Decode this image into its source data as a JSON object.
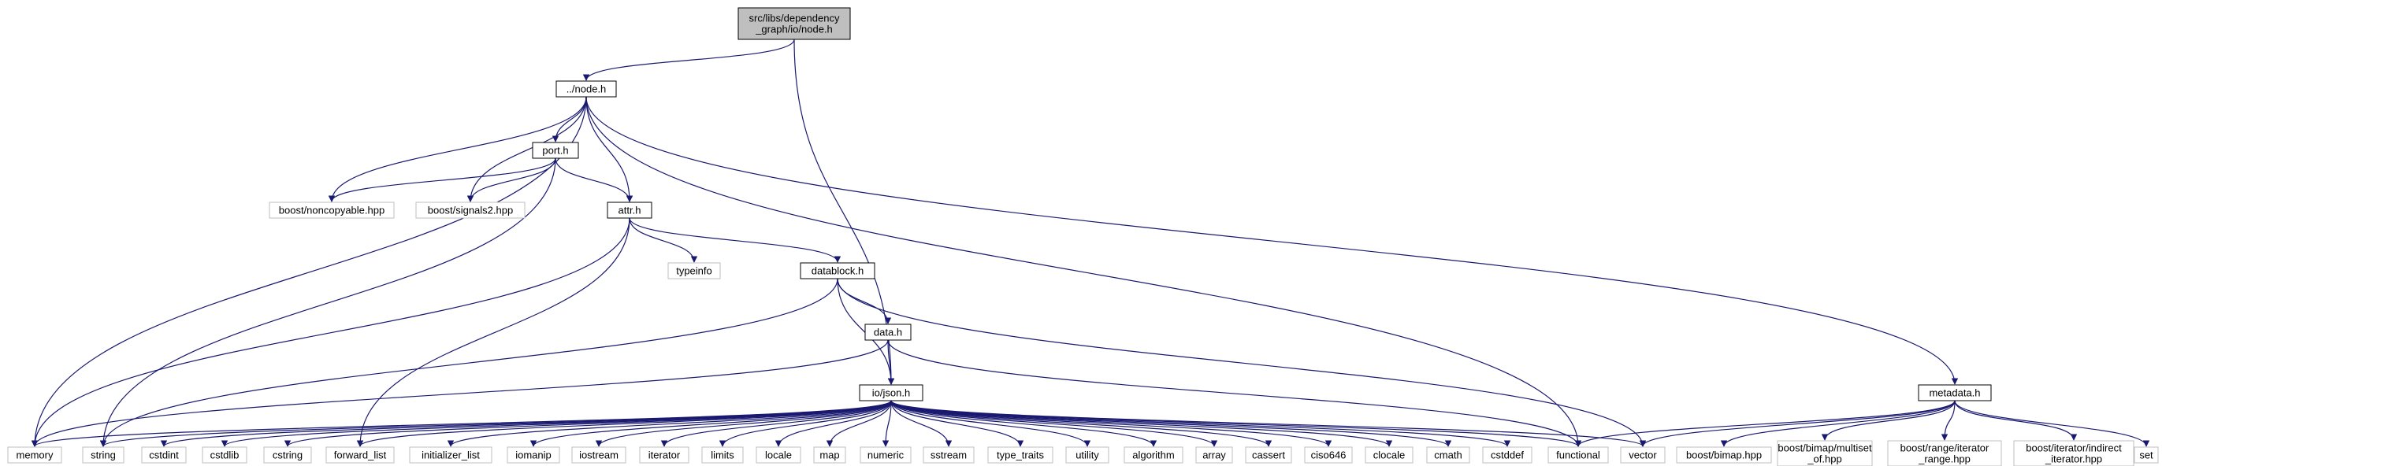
{
  "colors": {
    "edge": "#191970",
    "root_fill": "#bfbfbf",
    "documented_border": "#000000",
    "external_border": "#bfbfbf",
    "node_fill": "#ffffff",
    "background": "#ffffff"
  },
  "nodes": [
    {
      "id": "root",
      "lines": [
        "src/libs/dependency",
        "_graph/io/node.h"
      ],
      "kind": "root"
    },
    {
      "id": "node_h",
      "lines": [
        "../node.h"
      ],
      "kind": "documented"
    },
    {
      "id": "port_h",
      "lines": [
        "port.h"
      ],
      "kind": "documented"
    },
    {
      "id": "attr_h",
      "lines": [
        "attr.h"
      ],
      "kind": "documented"
    },
    {
      "id": "datablock_h",
      "lines": [
        "datablock.h"
      ],
      "kind": "documented"
    },
    {
      "id": "data_h",
      "lines": [
        "data.h"
      ],
      "kind": "documented"
    },
    {
      "id": "json_h",
      "lines": [
        "io/json.h"
      ],
      "kind": "documented"
    },
    {
      "id": "metadata_h",
      "lines": [
        "metadata.h"
      ],
      "kind": "documented"
    },
    {
      "id": "noncopyable",
      "lines": [
        "boost/noncopyable.hpp"
      ],
      "kind": "external"
    },
    {
      "id": "signals2",
      "lines": [
        "boost/signals2.hpp"
      ],
      "kind": "external"
    },
    {
      "id": "typeinfo",
      "lines": [
        "typeinfo"
      ],
      "kind": "external"
    },
    {
      "id": "memory",
      "lines": [
        "memory"
      ],
      "kind": "external"
    },
    {
      "id": "string",
      "lines": [
        "string"
      ],
      "kind": "external"
    },
    {
      "id": "cstdint",
      "lines": [
        "cstdint"
      ],
      "kind": "external"
    },
    {
      "id": "cstdlib",
      "lines": [
        "cstdlib"
      ],
      "kind": "external"
    },
    {
      "id": "cstring",
      "lines": [
        "cstring"
      ],
      "kind": "external"
    },
    {
      "id": "forward_list",
      "lines": [
        "forward_list"
      ],
      "kind": "external"
    },
    {
      "id": "initializer_list",
      "lines": [
        "initializer_list"
      ],
      "kind": "external"
    },
    {
      "id": "iomanip",
      "lines": [
        "iomanip"
      ],
      "kind": "external"
    },
    {
      "id": "iostream",
      "lines": [
        "iostream"
      ],
      "kind": "external"
    },
    {
      "id": "iterator",
      "lines": [
        "iterator"
      ],
      "kind": "external"
    },
    {
      "id": "limits",
      "lines": [
        "limits"
      ],
      "kind": "external"
    },
    {
      "id": "locale",
      "lines": [
        "locale"
      ],
      "kind": "external"
    },
    {
      "id": "map",
      "lines": [
        "map"
      ],
      "kind": "external"
    },
    {
      "id": "numeric",
      "lines": [
        "numeric"
      ],
      "kind": "external"
    },
    {
      "id": "sstream",
      "lines": [
        "sstream"
      ],
      "kind": "external"
    },
    {
      "id": "type_traits",
      "lines": [
        "type_traits"
      ],
      "kind": "external"
    },
    {
      "id": "utility",
      "lines": [
        "utility"
      ],
      "kind": "external"
    },
    {
      "id": "algorithm",
      "lines": [
        "algorithm"
      ],
      "kind": "external"
    },
    {
      "id": "array",
      "lines": [
        "array"
      ],
      "kind": "external"
    },
    {
      "id": "cassert",
      "lines": [
        "cassert"
      ],
      "kind": "external"
    },
    {
      "id": "ciso646",
      "lines": [
        "ciso646"
      ],
      "kind": "external"
    },
    {
      "id": "clocale",
      "lines": [
        "clocale"
      ],
      "kind": "external"
    },
    {
      "id": "cmath",
      "lines": [
        "cmath"
      ],
      "kind": "external"
    },
    {
      "id": "cstddef",
      "lines": [
        "cstddef"
      ],
      "kind": "external"
    },
    {
      "id": "functional",
      "lines": [
        "functional"
      ],
      "kind": "external"
    },
    {
      "id": "vector",
      "lines": [
        "vector"
      ],
      "kind": "external"
    },
    {
      "id": "bimap",
      "lines": [
        "boost/bimap.hpp"
      ],
      "kind": "external"
    },
    {
      "id": "multiset_of",
      "lines": [
        "boost/bimap/multiset",
        "_of.hpp"
      ],
      "kind": "external"
    },
    {
      "id": "iterator_range",
      "lines": [
        "boost/range/iterator",
        "_range.hpp"
      ],
      "kind": "external"
    },
    {
      "id": "indirect_iterator",
      "lines": [
        "boost/iterator/indirect",
        "_iterator.hpp"
      ],
      "kind": "external"
    },
    {
      "id": "set",
      "lines": [
        "set"
      ],
      "kind": "external"
    }
  ],
  "edges": [
    [
      "root",
      "node_h"
    ],
    [
      "root",
      "json_h"
    ],
    [
      "node_h",
      "memory"
    ],
    [
      "node_h",
      "noncopyable"
    ],
    [
      "node_h",
      "signals2"
    ],
    [
      "node_h",
      "port_h"
    ],
    [
      "node_h",
      "attr_h"
    ],
    [
      "node_h",
      "functional"
    ],
    [
      "node_h",
      "metadata_h"
    ],
    [
      "port_h",
      "noncopyable"
    ],
    [
      "port_h",
      "signals2"
    ],
    [
      "port_h",
      "attr_h"
    ],
    [
      "port_h",
      "string"
    ],
    [
      "attr_h",
      "memory"
    ],
    [
      "attr_h",
      "typeinfo"
    ],
    [
      "attr_h",
      "datablock_h"
    ],
    [
      "attr_h",
      "forward_list"
    ],
    [
      "datablock_h",
      "data_h"
    ],
    [
      "datablock_h",
      "json_h"
    ],
    [
      "datablock_h",
      "string"
    ],
    [
      "datablock_h",
      "vector"
    ],
    [
      "data_h",
      "json_h"
    ],
    [
      "data_h",
      "memory"
    ],
    [
      "data_h",
      "functional"
    ],
    [
      "json_h",
      "memory"
    ],
    [
      "json_h",
      "string"
    ],
    [
      "json_h",
      "cstdint"
    ],
    [
      "json_h",
      "cstdlib"
    ],
    [
      "json_h",
      "cstring"
    ],
    [
      "json_h",
      "forward_list"
    ],
    [
      "json_h",
      "initializer_list"
    ],
    [
      "json_h",
      "iomanip"
    ],
    [
      "json_h",
      "iostream"
    ],
    [
      "json_h",
      "iterator"
    ],
    [
      "json_h",
      "limits"
    ],
    [
      "json_h",
      "locale"
    ],
    [
      "json_h",
      "map"
    ],
    [
      "json_h",
      "numeric"
    ],
    [
      "json_h",
      "sstream"
    ],
    [
      "json_h",
      "type_traits"
    ],
    [
      "json_h",
      "utility"
    ],
    [
      "json_h",
      "algorithm"
    ],
    [
      "json_h",
      "array"
    ],
    [
      "json_h",
      "cassert"
    ],
    [
      "json_h",
      "ciso646"
    ],
    [
      "json_h",
      "clocale"
    ],
    [
      "json_h",
      "cmath"
    ],
    [
      "json_h",
      "cstddef"
    ],
    [
      "json_h",
      "functional"
    ],
    [
      "json_h",
      "vector"
    ],
    [
      "metadata_h",
      "functional"
    ],
    [
      "metadata_h",
      "vector"
    ],
    [
      "metadata_h",
      "bimap"
    ],
    [
      "metadata_h",
      "multiset_of"
    ],
    [
      "metadata_h",
      "iterator_range"
    ],
    [
      "metadata_h",
      "indirect_iterator"
    ],
    [
      "metadata_h",
      "set"
    ]
  ]
}
